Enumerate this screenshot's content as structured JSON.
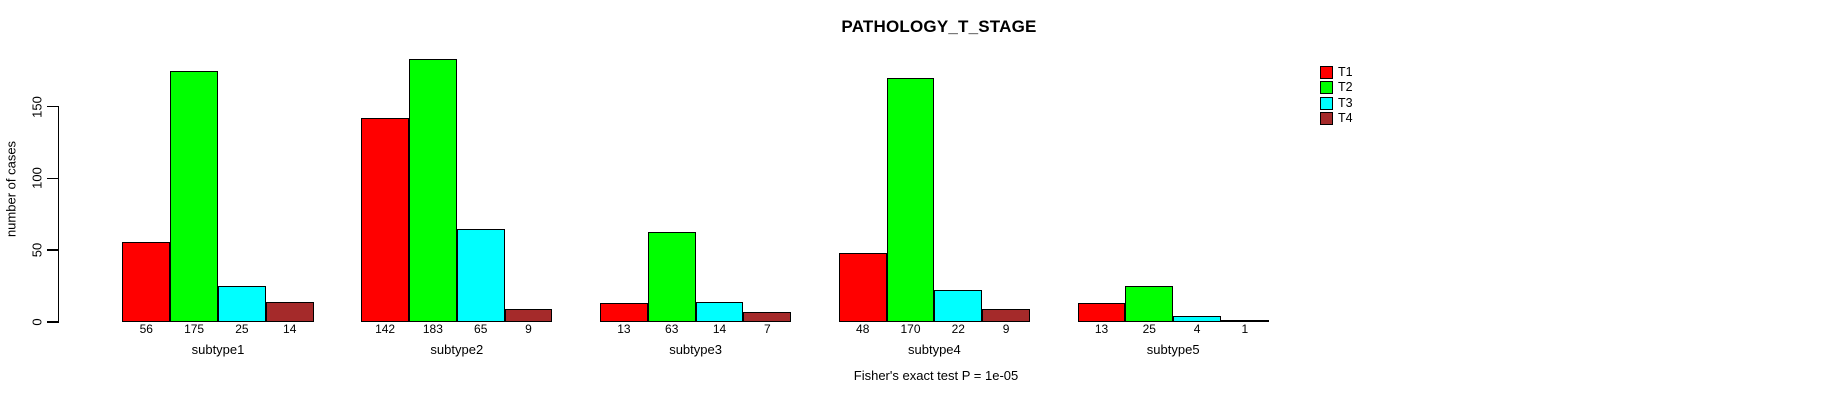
{
  "page": {
    "background": "#ffffff"
  },
  "chart_data": {
    "type": "bar",
    "title": "PATHOLOGY_T_STAGE",
    "ylabel": "number of cases",
    "xlabel": "",
    "categories": [
      "subtype1",
      "subtype2",
      "subtype3",
      "subtype4",
      "subtype5"
    ],
    "series": [
      {
        "name": "T1",
        "color": "#ff0000",
        "values": [
          56,
          142,
          13,
          48,
          13
        ]
      },
      {
        "name": "T2",
        "color": "#00ff00",
        "values": [
          175,
          183,
          63,
          170,
          25
        ]
      },
      {
        "name": "T3",
        "color": "#00ffff",
        "values": [
          25,
          65,
          14,
          22,
          4
        ]
      },
      {
        "name": "T4",
        "color": "#a52a2a",
        "values": [
          14,
          9,
          7,
          9,
          1
        ]
      }
    ],
    "yticks": [
      0,
      50,
      100,
      150
    ],
    "ylim": [
      0,
      190
    ],
    "grid": false,
    "legend_position": "top-right",
    "bar_value_labels": true,
    "annotation": "Fisher's exact test P = 1e-05"
  }
}
